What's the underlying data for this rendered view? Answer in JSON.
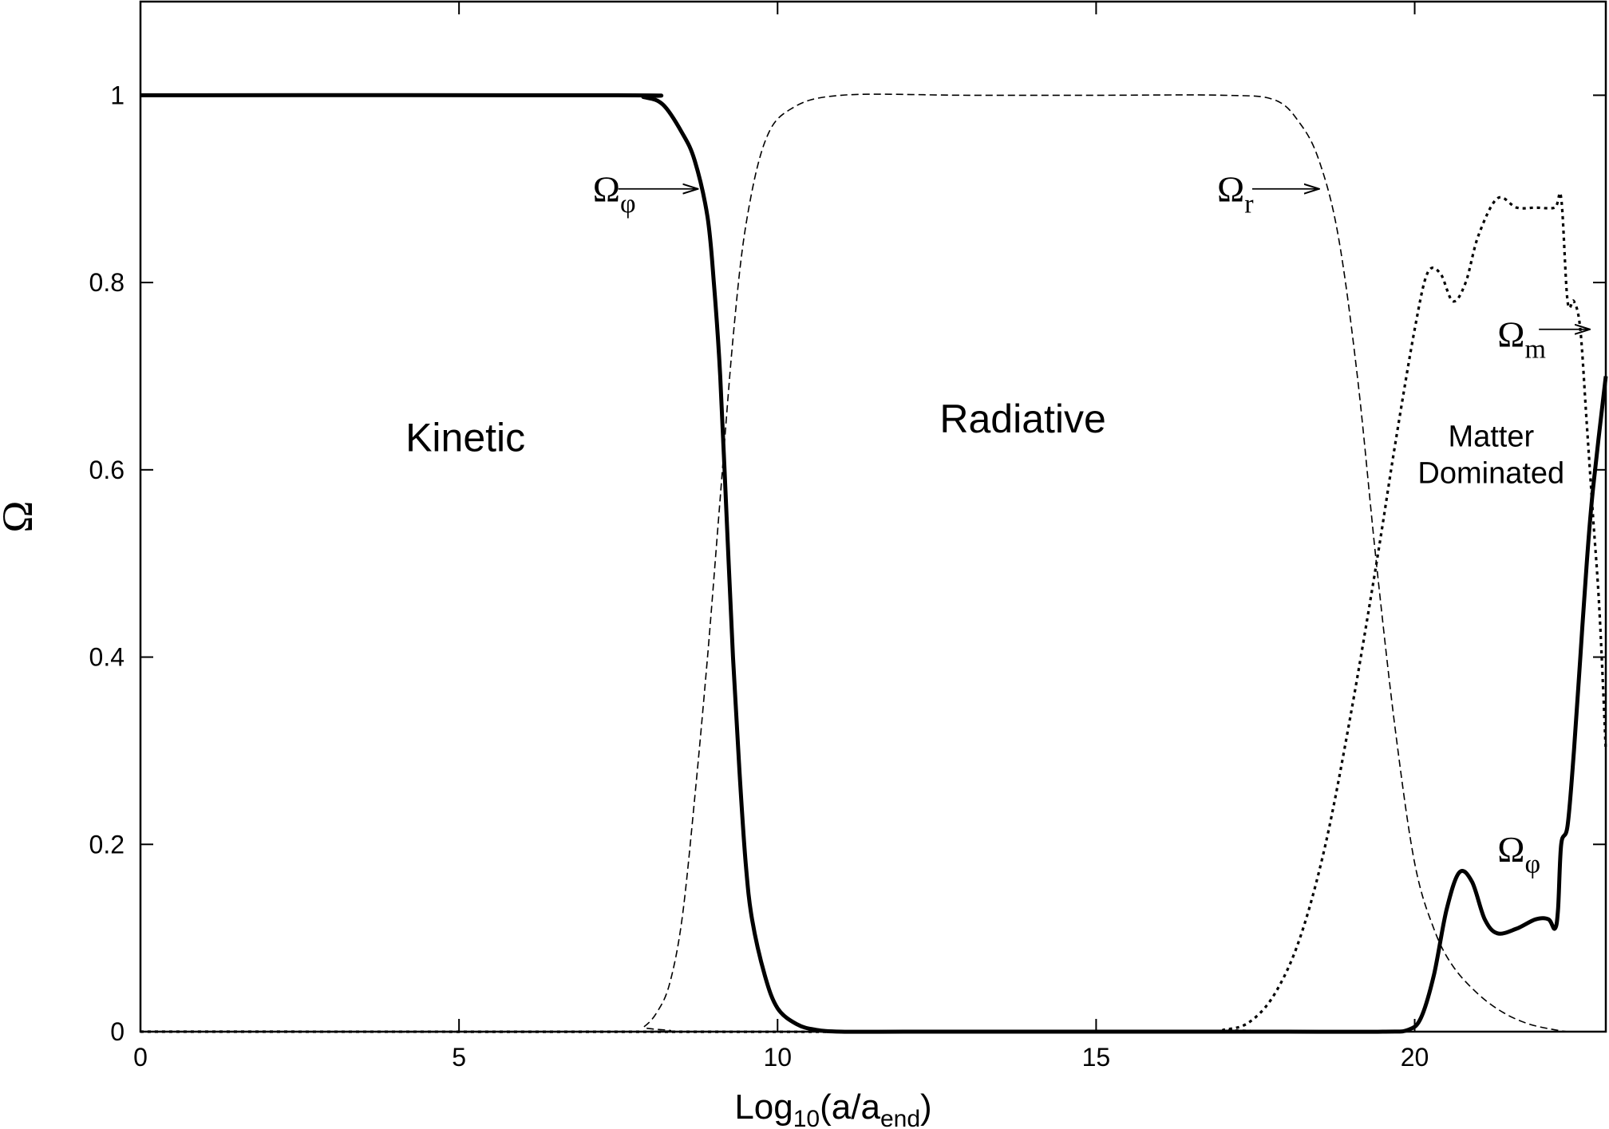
{
  "chart_data": {
    "type": "line",
    "title": "",
    "xlabel": {
      "main": "Log",
      "sub": "10",
      "paren_open": "(a/a",
      "sub2": "end",
      "paren_close": ")"
    },
    "ylabel": "Ω",
    "xlim": [
      0,
      23
    ],
    "ylim": [
      0,
      1.1
    ],
    "xticks": [
      0,
      5,
      10,
      15,
      20
    ],
    "yticks": [
      0,
      0.2,
      0.4,
      0.6,
      0.8,
      1
    ],
    "ytick_labels": [
      "0",
      "0.2",
      "0.4",
      "0.6",
      "0.8",
      "1"
    ],
    "xtick_labels": [
      "0",
      "5",
      "10",
      "15",
      "20"
    ],
    "grid": false,
    "series": [
      {
        "key": "phi",
        "style": "solid-thick",
        "x": [
          0,
          7.5,
          7.9,
          8.2,
          8.5,
          8.7,
          8.9,
          9.0,
          9.1,
          9.2,
          9.3,
          9.4,
          9.5,
          9.6,
          9.8,
          10.0,
          10.3,
          10.6,
          11.0,
          12,
          14,
          16,
          18,
          19.5,
          19.9,
          20.1,
          20.3,
          20.5,
          20.7,
          20.9,
          21.1,
          21.3,
          21.6,
          21.9,
          22.1,
          22.2,
          22.25,
          22.3,
          22.4,
          22.5,
          22.6,
          22.7,
          22.8,
          23.0
        ],
        "y": [
          1.0,
          1.0,
          0.998,
          0.99,
          0.96,
          0.93,
          0.87,
          0.8,
          0.7,
          0.55,
          0.4,
          0.28,
          0.18,
          0.12,
          0.06,
          0.025,
          0.008,
          0.002,
          0.0,
          0.0,
          0.0,
          0.0,
          0.0,
          0.0,
          0.002,
          0.015,
          0.06,
          0.13,
          0.17,
          0.16,
          0.12,
          0.105,
          0.11,
          0.12,
          0.12,
          0.11,
          0.13,
          0.2,
          0.22,
          0.3,
          0.4,
          0.5,
          0.58,
          0.7
        ]
      },
      {
        "key": "r",
        "style": "dashed-thin",
        "x": [
          0,
          7.7,
          7.9,
          8.1,
          8.3,
          8.5,
          8.7,
          8.9,
          9.1,
          9.3,
          9.5,
          9.8,
          10.2,
          11,
          13,
          15,
          17,
          17.8,
          18.2,
          18.5,
          18.8,
          19.1,
          19.4,
          19.7,
          20.0,
          20.3,
          20.6,
          21.0,
          21.4,
          21.8,
          22.2,
          22.4
        ],
        "y": [
          0,
          0,
          0.005,
          0.02,
          0.05,
          0.12,
          0.25,
          0.4,
          0.57,
          0.74,
          0.86,
          0.95,
          0.985,
          1.0,
          1.0,
          1.0,
          1.0,
          0.995,
          0.97,
          0.93,
          0.85,
          0.7,
          0.5,
          0.32,
          0.18,
          0.11,
          0.07,
          0.04,
          0.02,
          0.008,
          0.002,
          0.0
        ]
      },
      {
        "key": "m",
        "style": "dotted",
        "x": [
          0,
          16.5,
          17.0,
          17.4,
          17.8,
          18.2,
          18.6,
          19.0,
          19.4,
          19.7,
          20.0,
          20.2,
          20.4,
          20.6,
          20.8,
          21.0,
          21.3,
          21.6,
          21.9,
          22.2,
          22.3,
          22.4,
          22.5,
          22.6,
          22.7,
          22.8,
          22.9,
          23.0
        ],
        "y": [
          0,
          0,
          0.002,
          0.01,
          0.04,
          0.1,
          0.2,
          0.34,
          0.5,
          0.63,
          0.75,
          0.81,
          0.81,
          0.78,
          0.8,
          0.85,
          0.89,
          0.88,
          0.88,
          0.88,
          0.89,
          0.78,
          0.78,
          0.75,
          0.65,
          0.55,
          0.45,
          0.3
        ]
      }
    ],
    "annotations": [
      {
        "key": "phi_top",
        "base": "Ω",
        "sub": "φ",
        "text_at": [
          7.1,
          0.9
        ],
        "arrow_from": [
          7.5,
          0.9
        ],
        "arrow_to": [
          8.75,
          0.9
        ]
      },
      {
        "key": "r",
        "base": "Ω",
        "sub": "r",
        "text_at": [
          16.9,
          0.9
        ],
        "arrow_from": [
          17.45,
          0.9
        ],
        "arrow_to": [
          18.5,
          0.9
        ]
      },
      {
        "key": "m",
        "base": "Ω",
        "sub": "m",
        "text_at": [
          21.3,
          0.745
        ],
        "arrow_from": [
          21.95,
          0.75
        ],
        "arrow_to": [
          22.75,
          0.75
        ]
      },
      {
        "key": "phi_bottom",
        "base": "Ω",
        "sub": "φ",
        "text_at": [
          21.3,
          0.195
        ],
        "arrow_from": null,
        "arrow_to": null
      }
    ],
    "regions": [
      {
        "key": "kinetic",
        "lines": [
          "Kinetic"
        ],
        "at": [
          5.1,
          0.62
        ],
        "size": "big"
      },
      {
        "key": "radiative",
        "lines": [
          "Radiative"
        ],
        "at": [
          13.85,
          0.64
        ],
        "size": "big"
      },
      {
        "key": "matter",
        "lines": [
          "Matter",
          "Dominated"
        ],
        "at": [
          21.2,
          0.625
        ],
        "size": "small"
      }
    ]
  }
}
